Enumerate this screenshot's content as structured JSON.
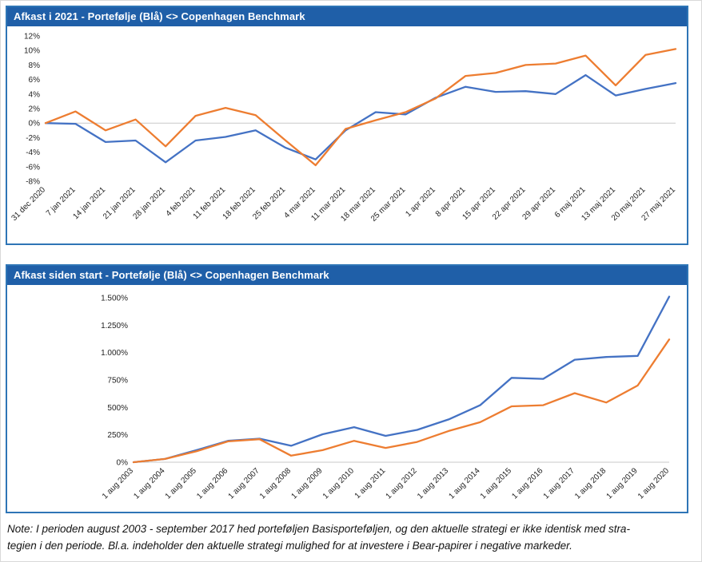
{
  "panels": [
    {
      "title": "Afkast i 2021 - Portefølje (Blå) <> Copenhagen Benchmark"
    },
    {
      "title": "Afkast siden start - Portefølje (Blå) <> Copenhagen Benchmark"
    }
  ],
  "note": {
    "line1": "Note: I perioden august 2003 - september 2017 hed porteføljen Basisporteføljen, og den aktuelle strategi er ikke identisk med stra-",
    "line2": "tegien i den periode. Bl.a. indeholder den aktuelle strategi mulighed for at investere i Bear-papirer i negative markeder."
  },
  "colors": {
    "header_blue": "#1F5FA8",
    "border_blue": "#2E75B6",
    "portfolio_line": "#4472C4",
    "benchmark_line": "#ED7D31",
    "axis_gray": "#c8c8c8"
  },
  "chart_data": [
    {
      "type": "line",
      "title": "Afkast i 2021 - Portefølje (Blå) <> Copenhagen Benchmark",
      "xlabel": "",
      "ylabel": "",
      "ylim": [
        -8,
        12
      ],
      "grid": false,
      "legend": "none",
      "categories": [
        "31 dec 2020",
        "7 jan 2021",
        "14 jan 2021",
        "21 jan 2021",
        "28 jan 2021",
        "4 feb 2021",
        "11 feb 2021",
        "18 feb 2021",
        "25 feb 2021",
        "4 mar 2021",
        "11 mar 2021",
        "18 mar 2021",
        "25 mar 2021",
        "1 apr 2021",
        "8 apr 2021",
        "15 apr 2021",
        "22 apr 2021",
        "29 apr 2021",
        "6 maj 2021",
        "13 maj 2021",
        "20 maj 2021",
        "27 maj 2021"
      ],
      "yticks": [
        {
          "label": "12%",
          "value": 12
        },
        {
          "label": "10%",
          "value": 10
        },
        {
          "label": "8%",
          "value": 8
        },
        {
          "label": "6%",
          "value": 6
        },
        {
          "label": "4%",
          "value": 4
        },
        {
          "label": "2%",
          "value": 2
        },
        {
          "label": "0%",
          "value": 0
        },
        {
          "label": "-2%",
          "value": -2
        },
        {
          "label": "-4%",
          "value": -4
        },
        {
          "label": "-6%",
          "value": -6
        },
        {
          "label": "-8%",
          "value": -8
        }
      ],
      "series": [
        {
          "name": "Portefølje",
          "color": "#4472C4",
          "values": [
            0.0,
            -0.1,
            -2.6,
            -2.4,
            -5.4,
            -2.4,
            -1.9,
            -1.0,
            -3.4,
            -5.0,
            -1.0,
            1.5,
            1.2,
            3.5,
            5.0,
            4.3,
            4.4,
            4.0,
            6.6,
            3.8,
            4.7,
            5.5
          ]
        },
        {
          "name": "Copenhagen Benchmark",
          "color": "#ED7D31",
          "values": [
            0.0,
            1.6,
            -1.0,
            0.5,
            -3.2,
            1.0,
            2.1,
            1.1,
            -2.4,
            -5.8,
            -0.8,
            0.4,
            1.5,
            3.4,
            6.5,
            6.9,
            8.0,
            8.2,
            9.3,
            5.2,
            9.4,
            10.2
          ]
        }
      ]
    },
    {
      "type": "line",
      "title": "Afkast siden start - Portefølje (Blå) <> Copenhagen Benchmark",
      "xlabel": "",
      "ylabel": "",
      "ylim": [
        0,
        1500
      ],
      "grid": false,
      "legend": "none",
      "categories": [
        "1 aug 2003",
        "1 aug 2004",
        "1 aug 2005",
        "1 aug 2006",
        "1 aug 2007",
        "1 aug 2008",
        "1 aug 2009",
        "1 aug 2010",
        "1 aug 2011",
        "1 aug 2012",
        "1 aug 2013",
        "1 aug 2014",
        "1 aug 2015",
        "1 aug 2016",
        "1 aug 2017",
        "1 aug 2018",
        "1 aug 2019",
        "1 aug 2020"
      ],
      "yticks": [
        {
          "label": "1.500%",
          "value": 1500
        },
        {
          "label": "1.250%",
          "value": 1250
        },
        {
          "label": "1.000%",
          "value": 1000
        },
        {
          "label": "750%",
          "value": 750
        },
        {
          "label": "500%",
          "value": 500
        },
        {
          "label": "250%",
          "value": 250
        },
        {
          "label": "0%",
          "value": 0
        }
      ],
      "series": [
        {
          "name": "Portefølje",
          "color": "#4472C4",
          "values": [
            0,
            30,
            110,
            195,
            215,
            150,
            255,
            320,
            240,
            295,
            390,
            520,
            770,
            760,
            935,
            960,
            970,
            1510
          ]
        },
        {
          "name": "Copenhagen Benchmark",
          "color": "#ED7D31",
          "values": [
            0,
            30,
            100,
            190,
            210,
            60,
            110,
            195,
            130,
            185,
            285,
            365,
            510,
            520,
            630,
            545,
            700,
            1120
          ]
        }
      ]
    }
  ]
}
